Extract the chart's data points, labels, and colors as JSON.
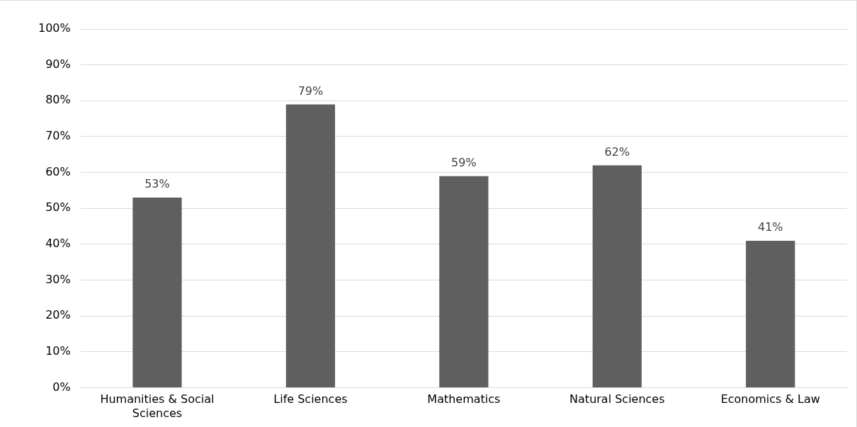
{
  "chart_data": {
    "type": "bar",
    "categories": [
      "Humanities & Social Sciences",
      "Life Sciences",
      "Mathematics",
      "Natural Sciences",
      "Economics & Law"
    ],
    "values": [
      53,
      79,
      59,
      62,
      41
    ],
    "value_labels": [
      "53%",
      "79%",
      "59%",
      "62%",
      "41%"
    ],
    "color": "#5f5f5f",
    "ylim": [
      0,
      100
    ],
    "yticks": [
      {
        "value": 0,
        "label": "0%"
      },
      {
        "value": 10,
        "label": "10%"
      },
      {
        "value": 20,
        "label": "20%"
      },
      {
        "value": 30,
        "label": "30%"
      },
      {
        "value": 40,
        "label": "40%"
      },
      {
        "value": 50,
        "label": "50%"
      },
      {
        "value": 60,
        "label": "60%"
      },
      {
        "value": 70,
        "label": "70%"
      },
      {
        "value": 80,
        "label": "80%"
      },
      {
        "value": 90,
        "label": "90%"
      },
      {
        "value": 100,
        "label": "100%"
      }
    ],
    "grid": "y",
    "legend": false
  }
}
